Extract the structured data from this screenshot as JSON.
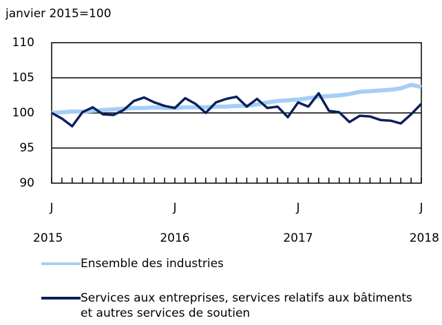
{
  "chart_data": {
    "type": "line",
    "y_axis_label": "janvier 2015=100",
    "categories": [
      "J",
      null,
      null,
      null,
      null,
      null,
      null,
      null,
      null,
      null,
      null,
      null,
      "J",
      null,
      null,
      null,
      null,
      null,
      null,
      null,
      null,
      null,
      null,
      null,
      "J",
      null,
      null,
      null,
      null,
      null,
      null,
      null,
      null,
      null,
      null,
      null,
      "J"
    ],
    "year_labels": [
      "2015",
      "2016",
      "2017",
      "2018"
    ],
    "ylim": [
      90,
      110
    ],
    "yticks": [
      90,
      95,
      100,
      105,
      110
    ],
    "series": [
      {
        "name": "Ensemble des industries",
        "color": "#a6cef5",
        "values": [
          100.0,
          100.1,
          100.2,
          100.2,
          100.3,
          100.4,
          100.5,
          100.6,
          100.7,
          100.7,
          100.8,
          100.7,
          100.7,
          100.8,
          100.8,
          100.8,
          100.9,
          100.9,
          101.0,
          101.0,
          101.2,
          101.5,
          101.7,
          101.8,
          101.9,
          102.1,
          102.3,
          102.4,
          102.5,
          102.7,
          103.0,
          103.1,
          103.2,
          103.3,
          103.5,
          104.0,
          103.7
        ]
      },
      {
        "name": "Services aux entreprises, services relatifs aux bâtiments et autres services de soutien",
        "color": "#0b1f5c",
        "values": [
          100.0,
          99.2,
          98.1,
          100.1,
          100.8,
          99.8,
          99.7,
          100.4,
          101.7,
          102.2,
          101.5,
          101.0,
          100.7,
          102.1,
          101.3,
          100.0,
          101.5,
          102.0,
          102.3,
          100.9,
          102.0,
          100.7,
          100.9,
          99.4,
          101.5,
          100.9,
          102.8,
          100.3,
          100.1,
          98.7,
          99.6,
          99.5,
          99.0,
          98.9,
          98.5,
          99.8,
          101.3
        ]
      }
    ]
  }
}
